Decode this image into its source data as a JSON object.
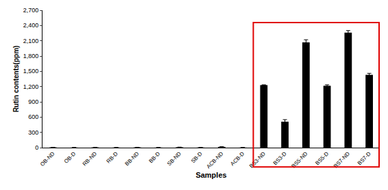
{
  "chart_data": {
    "type": "bar",
    "categories": [
      "OB-ND",
      "OB-D",
      "RB-ND",
      "RB-D",
      "BB-ND",
      "BB-D",
      "SB-ND",
      "SB-D",
      "ACB-ND",
      "ACB-D",
      "BS3-ND",
      "BS3-D",
      "BS5-ND",
      "BS5-D",
      "BS7-ND",
      "BS7-D"
    ],
    "values": [
      5,
      2,
      5,
      2,
      5,
      2,
      8,
      3,
      15,
      2,
      1230,
      510,
      2070,
      1215,
      2260,
      1430
    ],
    "errors": [
      2,
      1,
      2,
      1,
      2,
      1,
      2,
      1,
      3,
      1,
      5,
      40,
      50,
      20,
      40,
      30
    ],
    "color": "#000000",
    "x_label": "Samples",
    "y_label": "Rutin contents(ppm)",
    "ylim": [
      0,
      2700
    ],
    "yticks": [
      0,
      300,
      600,
      900,
      {
        "value": 1200,
        "label": "1,200"
      },
      {
        "value": 1500,
        "label": "1,500"
      },
      {
        "value": 1800,
        "label": "1,800"
      },
      {
        "value": 2100,
        "label": "2,100"
      },
      {
        "value": 2400,
        "label": "2,400"
      },
      {
        "value": 2700,
        "label": "2,700"
      }
    ],
    "grid": false
  }
}
